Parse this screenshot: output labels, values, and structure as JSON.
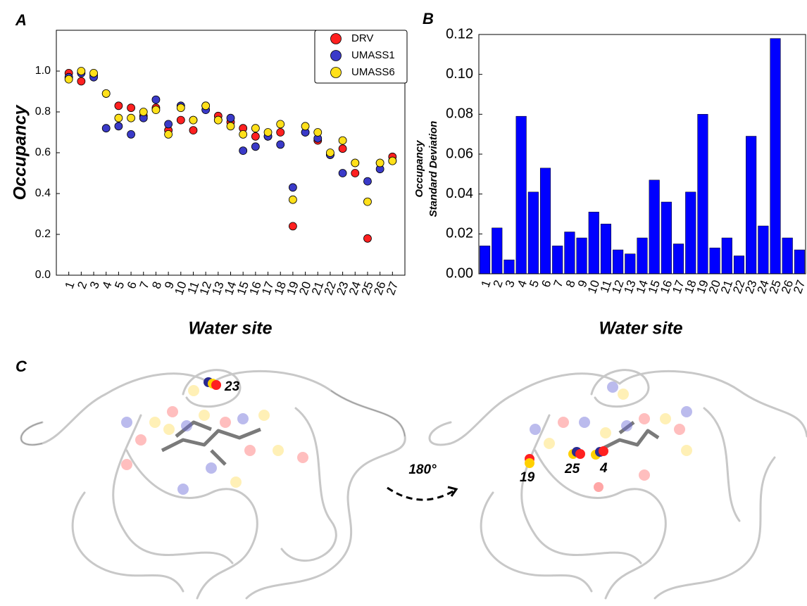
{
  "chart_data": [
    {
      "type": "scatter",
      "panel": "A",
      "ylabel": "Occupancy",
      "xlabel": "Water site",
      "x": [
        1,
        2,
        3,
        4,
        5,
        6,
        7,
        8,
        9,
        10,
        11,
        12,
        13,
        14,
        15,
        16,
        17,
        18,
        19,
        20,
        21,
        22,
        23,
        24,
        25,
        26,
        27
      ],
      "xlim": [
        0,
        28
      ],
      "xticks": [
        1,
        2,
        3,
        4,
        5,
        6,
        7,
        8,
        9,
        10,
        11,
        12,
        13,
        14,
        15,
        16,
        17,
        18,
        19,
        20,
        21,
        22,
        23,
        24,
        25,
        26,
        27
      ],
      "ylim": [
        0,
        1.2
      ],
      "yticks": [
        {
          "value": 0,
          "label": "0.0"
        },
        0.2,
        0.4,
        0.6,
        0.8,
        {
          "value": 1,
          "label": "1.0"
        }
      ],
      "legend": "upper right",
      "series": [
        {
          "name": "DRV",
          "color": "#ff2020",
          "values": [
            0.99,
            0.95,
            0.98,
            0.89,
            0.83,
            0.82,
            0.78,
            0.82,
            0.71,
            0.76,
            0.71,
            0.83,
            0.78,
            0.75,
            0.72,
            0.68,
            0.68,
            0.7,
            0.24,
            0.7,
            0.66,
            0.59,
            0.62,
            0.5,
            0.18,
            0.55,
            0.58
          ]
        },
        {
          "name": "UMASS1",
          "color": "#3a3ac8",
          "values": [
            0.97,
            0.99,
            0.97,
            0.72,
            0.73,
            0.69,
            0.77,
            0.86,
            0.74,
            0.83,
            0.76,
            0.81,
            0.76,
            0.77,
            0.61,
            0.63,
            0.68,
            0.64,
            0.43,
            0.7,
            0.67,
            0.59,
            0.5,
            0.55,
            0.46,
            0.52,
            0.56
          ]
        },
        {
          "name": "UMASS6",
          "color": "#ffe01a",
          "values": [
            0.96,
            1.0,
            0.99,
            0.89,
            0.77,
            0.77,
            0.8,
            0.81,
            0.69,
            0.82,
            0.76,
            0.83,
            0.76,
            0.73,
            0.69,
            0.72,
            0.7,
            0.74,
            0.37,
            0.73,
            0.7,
            0.6,
            0.66,
            0.55,
            0.36,
            0.55,
            0.56
          ]
        }
      ]
    },
    {
      "type": "bar",
      "panel": "B",
      "ylabel": [
        "Occupancy",
        "Standard Deviation"
      ],
      "xlabel": "Water site",
      "color": "#0000ff",
      "x": [
        1,
        2,
        3,
        4,
        5,
        6,
        7,
        8,
        9,
        10,
        11,
        12,
        13,
        14,
        15,
        16,
        17,
        18,
        19,
        20,
        21,
        22,
        23,
        24,
        25,
        26,
        27
      ],
      "xlim": [
        0.5,
        27.5
      ],
      "xticks": [
        1,
        2,
        3,
        4,
        5,
        6,
        7,
        8,
        9,
        10,
        11,
        12,
        13,
        14,
        15,
        16,
        17,
        18,
        19,
        20,
        21,
        22,
        23,
        24,
        25,
        26,
        27
      ],
      "ylim": [
        0,
        0.12
      ],
      "yticks": [
        {
          "value": 0,
          "label": "0.00"
        },
        {
          "value": 0.02,
          "label": "0.02"
        },
        {
          "value": 0.04,
          "label": "0.04"
        },
        {
          "value": 0.06,
          "label": "0.06"
        },
        {
          "value": 0.08,
          "label": "0.08"
        },
        {
          "value": 0.1,
          "label": "0.10"
        },
        {
          "value": 0.12,
          "label": "0.12"
        }
      ],
      "values": [
        0.014,
        0.023,
        0.007,
        0.079,
        0.041,
        0.053,
        0.014,
        0.021,
        0.018,
        0.031,
        0.025,
        0.012,
        0.01,
        0.018,
        0.047,
        0.036,
        0.015,
        0.041,
        0.08,
        0.013,
        0.018,
        0.009,
        0.069,
        0.024,
        0.118,
        0.018,
        0.012
      ]
    }
  ],
  "panel_c": {
    "label": "C",
    "site_labels": [
      "23",
      "19",
      "25",
      "4"
    ],
    "rotation_label": "180°"
  }
}
